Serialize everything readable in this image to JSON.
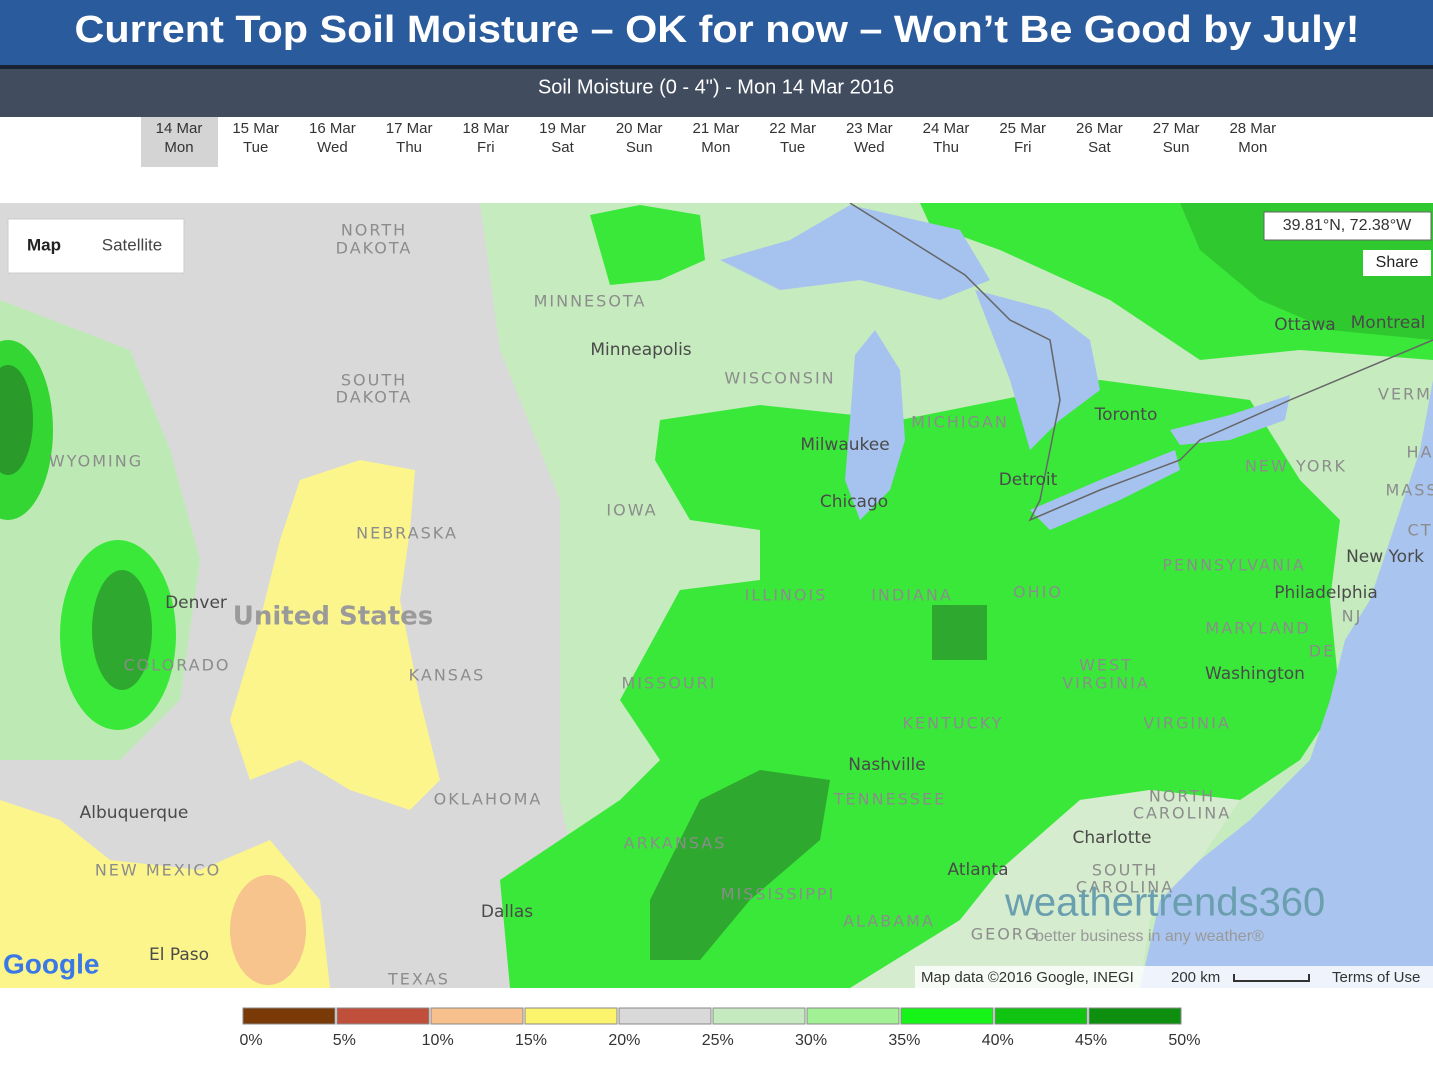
{
  "header": {
    "title": "Current Top Soil Moisture – OK for now – Won’t Be Good by July!",
    "subtitle": "Soil Moisture (0 - 4\") - Mon 14 Mar 2016"
  },
  "date_tabs": [
    {
      "date": "14 Mar",
      "day": "Mon"
    },
    {
      "date": "15 Mar",
      "day": "Tue"
    },
    {
      "date": "16 Mar",
      "day": "Wed"
    },
    {
      "date": "17 Mar",
      "day": "Thu"
    },
    {
      "date": "18 Mar",
      "day": "Fri"
    },
    {
      "date": "19 Mar",
      "day": "Sat"
    },
    {
      "date": "20 Mar",
      "day": "Sun"
    },
    {
      "date": "21 Mar",
      "day": "Mon"
    },
    {
      "date": "22 Mar",
      "day": "Tue"
    },
    {
      "date": "23 Mar",
      "day": "Wed"
    },
    {
      "date": "24 Mar",
      "day": "Thu"
    },
    {
      "date": "25 Mar",
      "day": "Fri"
    },
    {
      "date": "26 Mar",
      "day": "Sat"
    },
    {
      "date": "27 Mar",
      "day": "Sun"
    },
    {
      "date": "28 Mar",
      "day": "Mon"
    }
  ],
  "map": {
    "map_button": "Map",
    "satellite_button": "Satellite",
    "coordinates": "39.81°N, 72.38°W",
    "share": "Share",
    "country": "United States",
    "states": [
      "NORTH",
      "DAKOTA",
      "MINNESOTA",
      "SOUTH",
      "DAKOTA",
      "WISCONSIN",
      "MICHIGAN",
      "VERM",
      "WYOMING",
      "NEW YORK",
      "HA",
      "MASS",
      "IOWA",
      "NEBRASKA",
      "CT",
      "PENNSYLVANIA",
      "ILLINOIS",
      "INDIANA",
      "OHIO",
      "NJ",
      "MARYLAND",
      "DE",
      "COLORADO",
      "KANSAS",
      "WEST",
      "VIRGINIA",
      "MISSOURI",
      "KENTUCKY",
      "VIRGINIA",
      "TENNESSEE",
      "OKLAHOMA",
      "NORTH",
      "CAROLINA",
      "ARKANSAS",
      "SOUTH",
      "CAROLINA",
      "NEW MEXICO",
      "MISSISSIPPI",
      "ALABAMA",
      "GEORG",
      "TEXAS"
    ],
    "cities": [
      "Minneapolis",
      "Toronto",
      "Milwaukee",
      "Ottawa",
      "Montreal",
      "Detroit",
      "Chicago",
      "New York",
      "Denver",
      "Philadelphia",
      "Washington",
      "Nashville",
      "Albuquerque",
      "Charlotte",
      "Atlanta",
      "Dallas",
      "El Paso"
    ],
    "google": "Google",
    "attribution": "Map data ©2016 Google, INEGI",
    "scale": "200 km",
    "terms": "Terms of Use"
  },
  "watermark": {
    "brand": "weathertrends360",
    "tagline": "better business in any weather®"
  },
  "legend": {
    "colors": [
      "#7a3a08",
      "#c0503c",
      "#f7c08c",
      "#fbf46c",
      "#d9d9d9",
      "#c6eabf",
      "#a2f195",
      "#16f316",
      "#12c412",
      "#0f8f0f"
    ],
    "labels": [
      "0%",
      "5%",
      "10%",
      "15%",
      "20%",
      "25%",
      "30%",
      "35%",
      "40%",
      "45%",
      "50%"
    ]
  }
}
